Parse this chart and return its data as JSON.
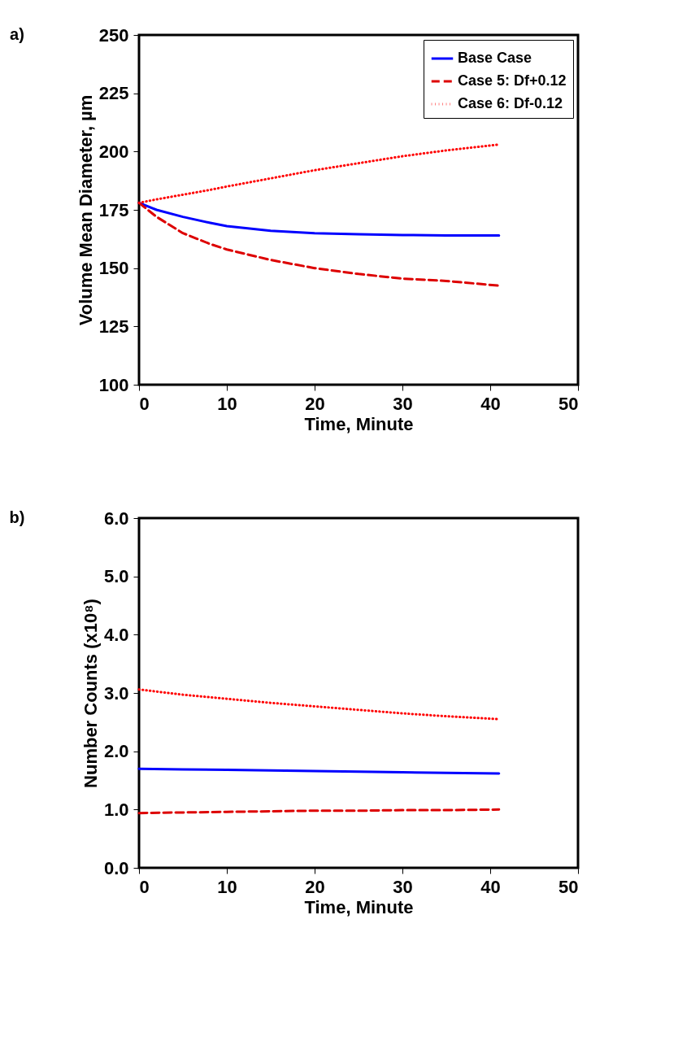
{
  "chart_data": [
    {
      "type": "line",
      "xlabel": "Time, Minute",
      "ylabel": "Volume Mean Diameter, µm",
      "annotations": [
        "a)"
      ],
      "xlim": [
        0,
        50
      ],
      "xticks": [
        0,
        10,
        20,
        30,
        40,
        50
      ],
      "ylim": [
        100,
        250
      ],
      "yticks": [
        100,
        125,
        150,
        175,
        200,
        225,
        250
      ],
      "grid": false,
      "legend": "top right",
      "marker": "none",
      "x": [
        0,
        2,
        5,
        8,
        10,
        15,
        20,
        25,
        30,
        35,
        41
      ],
      "series": [
        {
          "name": "Base Case",
          "color": "#0000ff",
          "line_style": "solid",
          "values": [
            178,
            175,
            172,
            169.5,
            168,
            166,
            165,
            164.5,
            164.2,
            164,
            164
          ]
        },
        {
          "name": "Case 5: Df+0.12",
          "color": "#dd0000",
          "line_style": "dashed",
          "values": [
            178,
            172,
            165,
            160.5,
            158,
            153.5,
            150,
            147.5,
            145.5,
            144.5,
            142.5
          ]
        },
        {
          "name": "Case 6: Df-0.12",
          "color": "#ff0000",
          "line_style": "dotted",
          "values": [
            178,
            179.5,
            181.5,
            183.5,
            185,
            188.5,
            192,
            195,
            198,
            200.5,
            203
          ]
        }
      ]
    },
    {
      "type": "line",
      "xlabel": "Time, Minute",
      "ylabel": "Number Counts (x10⁸)",
      "annotations": [
        "b)"
      ],
      "xlim": [
        0,
        50
      ],
      "xticks": [
        0,
        10,
        20,
        30,
        40,
        50
      ],
      "ylim": [
        0,
        6
      ],
      "yticks": [
        {
          "value": 0,
          "label": "0.0"
        },
        {
          "value": 1,
          "label": "1.0"
        },
        {
          "value": 2,
          "label": "2.0"
        },
        {
          "value": 3,
          "label": "3.0"
        },
        {
          "value": 4,
          "label": "4.0"
        },
        {
          "value": 5,
          "label": "5.0"
        },
        {
          "value": 6,
          "label": "6.0"
        }
      ],
      "grid": false,
      "legend": "top right",
      "marker": "none",
      "x": [
        0,
        5,
        10,
        15,
        20,
        25,
        30,
        35,
        41
      ],
      "series": [
        {
          "name": "Base Case",
          "color": "#0000ff",
          "line_style": "solid",
          "values": [
            1.7,
            1.69,
            1.68,
            1.67,
            1.66,
            1.65,
            1.64,
            1.63,
            1.62
          ]
        },
        {
          "name": "Case 5: Df+0.12",
          "color": "#dd0000",
          "line_style": "dashed",
          "values": [
            0.94,
            0.95,
            0.96,
            0.97,
            0.98,
            0.98,
            0.99,
            0.99,
            1.0
          ]
        },
        {
          "name": "Case 6: Df-0.12",
          "color": "#ff0000",
          "line_style": "dotted",
          "values": [
            3.06,
            2.97,
            2.9,
            2.83,
            2.77,
            2.71,
            2.65,
            2.6,
            2.55
          ]
        }
      ]
    }
  ]
}
